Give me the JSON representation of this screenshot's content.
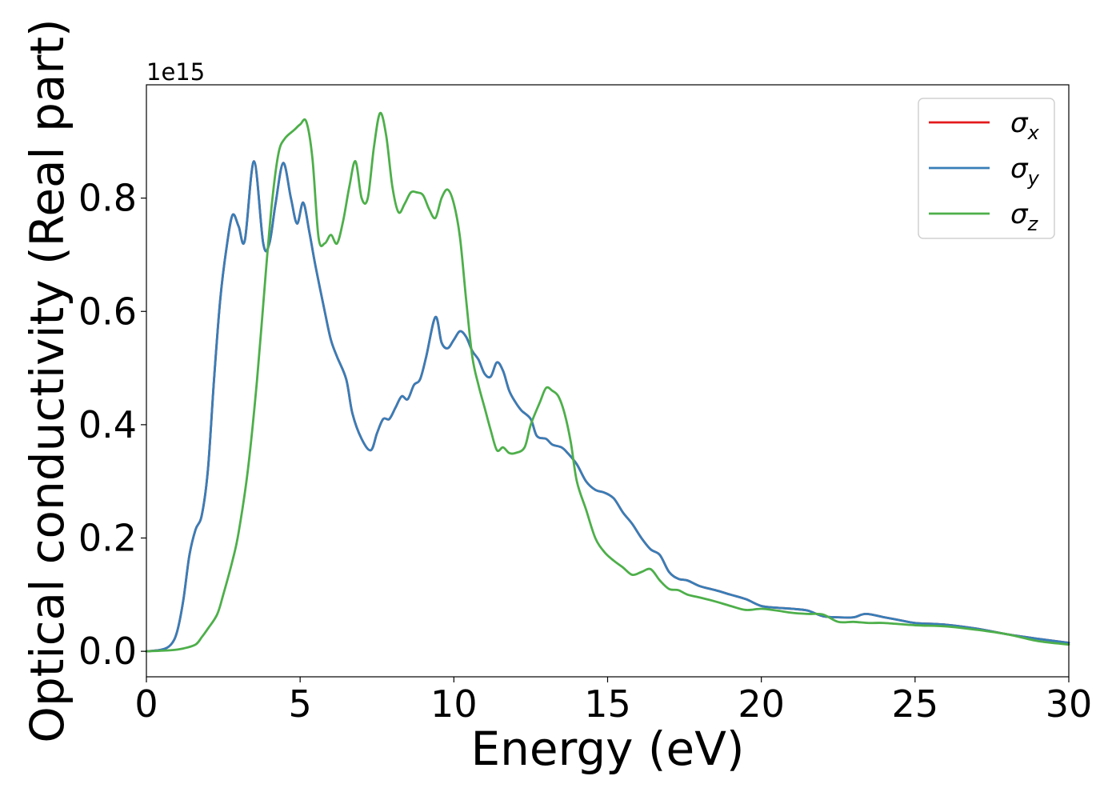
{
  "chart_data": {
    "type": "line",
    "title": "",
    "xlabel": "Energy (eV)",
    "ylabel": "Optical conductivity (Real part)",
    "y_offset_label": "1e15",
    "y_scale": 1000000000000000.0,
    "xlim": [
      0,
      30
    ],
    "ylim": [
      -0.045,
      1.0
    ],
    "xticks": [
      0,
      5,
      10,
      15,
      20,
      25,
      30
    ],
    "xtick_labels": [
      "0",
      "5",
      "10",
      "15",
      "20",
      "25",
      "30"
    ],
    "yticks": [
      0.0,
      0.2,
      0.4,
      0.6,
      0.8
    ],
    "ytick_labels": [
      "0.0",
      "0.2",
      "0.4",
      "0.6",
      "0.8"
    ],
    "grid": false,
    "legend_position": "top-right",
    "series": [
      {
        "name": "σx",
        "legend_symbol": "σ",
        "legend_sub": "x",
        "color": "#e41a1c",
        "x": [
          0,
          0.5,
          0.8,
          1.0,
          1.2,
          1.4,
          1.6,
          1.8,
          2.0,
          2.2,
          2.4,
          2.6,
          2.8,
          3.0,
          3.2,
          3.5,
          3.8,
          4.0,
          4.2,
          4.45,
          4.7,
          4.9,
          5.1,
          5.3,
          5.5,
          5.8,
          6.0,
          6.2,
          6.5,
          6.7,
          7.0,
          7.3,
          7.5,
          7.7,
          7.9,
          8.1,
          8.3,
          8.5,
          8.7,
          8.9,
          9.1,
          9.4,
          9.6,
          9.8,
          10.0,
          10.2,
          10.4,
          10.6,
          10.8,
          11.0,
          11.2,
          11.4,
          11.6,
          11.8,
          12.0,
          12.2,
          12.5,
          12.7,
          13.0,
          13.2,
          13.5,
          13.7,
          14.0,
          14.3,
          14.6,
          14.9,
          15.2,
          15.5,
          15.8,
          16.1,
          16.4,
          16.7,
          17.0,
          17.3,
          17.6,
          18.0,
          18.5,
          19.0,
          19.5,
          20.0,
          20.5,
          21.0,
          21.5,
          22.0,
          22.5,
          23.0,
          23.4,
          24.0,
          24.5,
          25.0,
          26.0,
          27.0,
          28.0,
          29.0,
          30.0
        ],
        "y": [
          0.0,
          0.003,
          0.012,
          0.035,
          0.09,
          0.17,
          0.215,
          0.24,
          0.32,
          0.48,
          0.62,
          0.71,
          0.77,
          0.75,
          0.725,
          0.865,
          0.72,
          0.72,
          0.79,
          0.862,
          0.8,
          0.755,
          0.792,
          0.74,
          0.68,
          0.6,
          0.55,
          0.52,
          0.48,
          0.42,
          0.375,
          0.355,
          0.385,
          0.41,
          0.41,
          0.43,
          0.45,
          0.445,
          0.47,
          0.48,
          0.52,
          0.59,
          0.545,
          0.535,
          0.55,
          0.565,
          0.555,
          0.53,
          0.515,
          0.49,
          0.485,
          0.51,
          0.495,
          0.46,
          0.44,
          0.425,
          0.41,
          0.38,
          0.375,
          0.365,
          0.36,
          0.35,
          0.33,
          0.3,
          0.285,
          0.28,
          0.27,
          0.245,
          0.225,
          0.2,
          0.18,
          0.17,
          0.14,
          0.128,
          0.125,
          0.115,
          0.108,
          0.1,
          0.092,
          0.08,
          0.077,
          0.075,
          0.072,
          0.062,
          0.06,
          0.06,
          0.066,
          0.06,
          0.055,
          0.05,
          0.047,
          0.04,
          0.03,
          0.022,
          0.015
        ]
      },
      {
        "name": "σy",
        "legend_symbol": "σ",
        "legend_sub": "y",
        "color": "#377eb8",
        "x": [
          0,
          0.5,
          0.8,
          1.0,
          1.2,
          1.4,
          1.6,
          1.8,
          2.0,
          2.2,
          2.4,
          2.6,
          2.8,
          3.0,
          3.2,
          3.5,
          3.8,
          4.0,
          4.2,
          4.45,
          4.7,
          4.9,
          5.1,
          5.3,
          5.5,
          5.8,
          6.0,
          6.2,
          6.5,
          6.7,
          7.0,
          7.3,
          7.5,
          7.7,
          7.9,
          8.1,
          8.3,
          8.5,
          8.7,
          8.9,
          9.1,
          9.4,
          9.6,
          9.8,
          10.0,
          10.2,
          10.4,
          10.6,
          10.8,
          11.0,
          11.2,
          11.4,
          11.6,
          11.8,
          12.0,
          12.2,
          12.5,
          12.7,
          13.0,
          13.2,
          13.5,
          13.7,
          14.0,
          14.3,
          14.6,
          14.9,
          15.2,
          15.5,
          15.8,
          16.1,
          16.4,
          16.7,
          17.0,
          17.3,
          17.6,
          18.0,
          18.5,
          19.0,
          19.5,
          20.0,
          20.5,
          21.0,
          21.5,
          22.0,
          22.5,
          23.0,
          23.4,
          24.0,
          24.5,
          25.0,
          26.0,
          27.0,
          28.0,
          29.0,
          30.0
        ],
        "y": [
          0.0,
          0.003,
          0.012,
          0.035,
          0.09,
          0.17,
          0.215,
          0.24,
          0.32,
          0.48,
          0.62,
          0.71,
          0.77,
          0.75,
          0.725,
          0.865,
          0.72,
          0.72,
          0.79,
          0.862,
          0.8,
          0.755,
          0.792,
          0.74,
          0.68,
          0.6,
          0.55,
          0.52,
          0.48,
          0.42,
          0.375,
          0.355,
          0.385,
          0.41,
          0.41,
          0.43,
          0.45,
          0.445,
          0.47,
          0.48,
          0.52,
          0.59,
          0.545,
          0.535,
          0.55,
          0.565,
          0.555,
          0.53,
          0.515,
          0.49,
          0.485,
          0.51,
          0.495,
          0.46,
          0.44,
          0.425,
          0.41,
          0.38,
          0.375,
          0.365,
          0.36,
          0.35,
          0.33,
          0.3,
          0.285,
          0.28,
          0.27,
          0.245,
          0.225,
          0.2,
          0.18,
          0.17,
          0.14,
          0.128,
          0.125,
          0.115,
          0.108,
          0.1,
          0.092,
          0.08,
          0.077,
          0.075,
          0.072,
          0.062,
          0.06,
          0.06,
          0.066,
          0.06,
          0.055,
          0.05,
          0.047,
          0.04,
          0.03,
          0.022,
          0.015
        ]
      },
      {
        "name": "σz",
        "legend_symbol": "σ",
        "legend_sub": "z",
        "color": "#4daf4a",
        "x": [
          0,
          0.8,
          1.2,
          1.6,
          1.8,
          2.0,
          2.3,
          2.5,
          2.8,
          3.0,
          3.3,
          3.6,
          3.9,
          4.1,
          4.3,
          4.5,
          4.8,
          5.0,
          5.2,
          5.4,
          5.6,
          5.8,
          6.0,
          6.2,
          6.4,
          6.6,
          6.8,
          7.0,
          7.2,
          7.4,
          7.6,
          7.8,
          8.0,
          8.2,
          8.4,
          8.6,
          8.8,
          9.0,
          9.2,
          9.4,
          9.6,
          9.8,
          10.0,
          10.2,
          10.4,
          10.6,
          10.8,
          11.0,
          11.2,
          11.4,
          11.6,
          11.8,
          12.0,
          12.3,
          12.5,
          12.8,
          13.0,
          13.2,
          13.4,
          13.6,
          13.8,
          14.0,
          14.3,
          14.6,
          14.9,
          15.2,
          15.5,
          15.8,
          16.1,
          16.4,
          16.7,
          17.0,
          17.3,
          17.6,
          18.0,
          18.5,
          19.0,
          19.5,
          20.0,
          20.5,
          21.0,
          21.5,
          22.0,
          22.5,
          23.0,
          23.5,
          24.0,
          25.0,
          26.0,
          27.0,
          28.0,
          29.0,
          30.0
        ],
        "y": [
          0.0,
          0.002,
          0.005,
          0.012,
          0.025,
          0.04,
          0.065,
          0.1,
          0.16,
          0.21,
          0.32,
          0.48,
          0.68,
          0.8,
          0.88,
          0.905,
          0.92,
          0.93,
          0.935,
          0.87,
          0.73,
          0.72,
          0.735,
          0.72,
          0.76,
          0.82,
          0.865,
          0.8,
          0.8,
          0.89,
          0.95,
          0.91,
          0.82,
          0.775,
          0.79,
          0.81,
          0.81,
          0.805,
          0.78,
          0.765,
          0.8,
          0.815,
          0.79,
          0.73,
          0.62,
          0.52,
          0.47,
          0.43,
          0.39,
          0.355,
          0.36,
          0.35,
          0.35,
          0.36,
          0.4,
          0.44,
          0.465,
          0.46,
          0.45,
          0.42,
          0.37,
          0.3,
          0.25,
          0.2,
          0.175,
          0.16,
          0.148,
          0.135,
          0.14,
          0.145,
          0.125,
          0.11,
          0.108,
          0.1,
          0.095,
          0.088,
          0.08,
          0.073,
          0.075,
          0.072,
          0.068,
          0.066,
          0.065,
          0.052,
          0.052,
          0.05,
          0.05,
          0.046,
          0.044,
          0.038,
          0.03,
          0.018,
          0.012
        ]
      }
    ]
  }
}
